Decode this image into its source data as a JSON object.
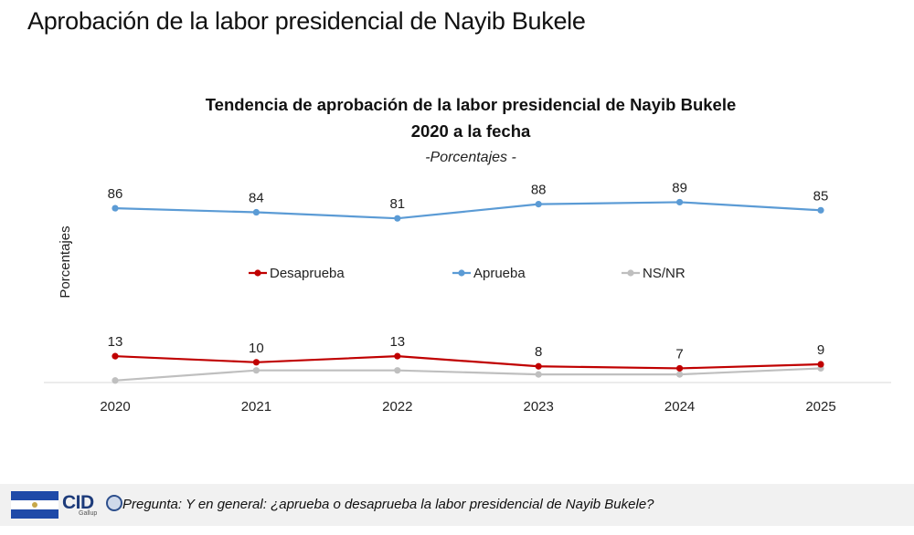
{
  "slide_title": "Aprobación de la labor presidencial de Nayib Bukele",
  "footer": {
    "logo_text": "CID",
    "logo_subtext": "Gallup",
    "question": "Pregunta: Y en general: ¿aprueba o desaprueba la labor presidencial de Nayib Bukele?"
  },
  "chart_data": {
    "type": "line",
    "title": "Tendencia de aprobación de la labor presidencial de Nayib Bukele",
    "title_line2": "2020 a la fecha",
    "subtitle": "-Porcentajes -",
    "ylabel": "Porcentajes",
    "xlabel": "",
    "categories": [
      "2020",
      "2021",
      "2022",
      "2023",
      "2024",
      "2025"
    ],
    "ylim": [
      0,
      100
    ],
    "grid": false,
    "legend_position": "middle",
    "series": [
      {
        "name": "Desaprueba",
        "values": [
          13,
          10,
          13,
          8,
          7,
          9
        ],
        "color": "#c00000",
        "show_labels": true
      },
      {
        "name": "Aprueba",
        "values": [
          86,
          84,
          81,
          88,
          89,
          85
        ],
        "color": "#5b9bd5",
        "show_labels": true
      },
      {
        "name": "NS/NR",
        "values": [
          1,
          6,
          6,
          4,
          4,
          7
        ],
        "color": "#bfbfbf",
        "show_labels": false
      }
    ]
  }
}
